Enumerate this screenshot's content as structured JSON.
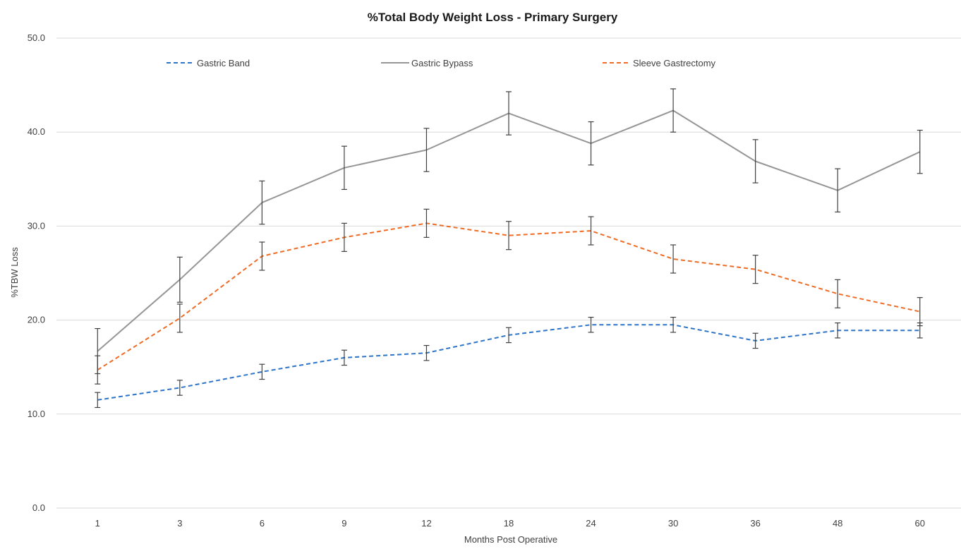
{
  "chart_data": {
    "type": "line",
    "title": "%Total Body Weight Loss - Primary Surgery",
    "xlabel": "Months Post Operative",
    "ylabel": "%TBW Loss",
    "categories": [
      "1",
      "3",
      "6",
      "9",
      "12",
      "18",
      "24",
      "30",
      "36",
      "48",
      "60"
    ],
    "ylim": [
      0,
      50
    ],
    "yticks": [
      "0.0",
      "10.0",
      "20.0",
      "30.0",
      "40.0",
      "50.0"
    ],
    "grid": true,
    "legend_position": "top",
    "series": [
      {
        "name": "Gastric Band",
        "color": "#2e75c8",
        "dash": "dashed",
        "values": [
          11.5,
          12.8,
          14.5,
          16.0,
          16.5,
          18.4,
          19.5,
          19.5,
          17.8,
          18.9,
          18.9
        ],
        "error": [
          0.8,
          0.8,
          0.8,
          0.8,
          0.8,
          0.8,
          0.8,
          0.8,
          0.8,
          0.8,
          0.8
        ]
      },
      {
        "name": "Gastric Bypass",
        "color": "#969696",
        "dash": "solid",
        "values": [
          16.7,
          24.3,
          32.5,
          36.2,
          38.1,
          42.0,
          38.8,
          42.3,
          36.9,
          33.8,
          37.9
        ],
        "error": [
          2.4,
          2.4,
          2.3,
          2.3,
          2.3,
          2.3,
          2.3,
          2.3,
          2.3,
          2.3,
          2.3
        ]
      },
      {
        "name": "Sleeve Gastrectomy",
        "color": "#ed6c26",
        "dash": "dashed",
        "values": [
          14.7,
          20.2,
          26.8,
          28.8,
          30.3,
          29.0,
          29.5,
          26.5,
          25.4,
          22.8,
          20.9
        ],
        "error": [
          1.5,
          1.5,
          1.5,
          1.5,
          1.5,
          1.5,
          1.5,
          1.5,
          1.5,
          1.5,
          1.5
        ]
      }
    ]
  }
}
